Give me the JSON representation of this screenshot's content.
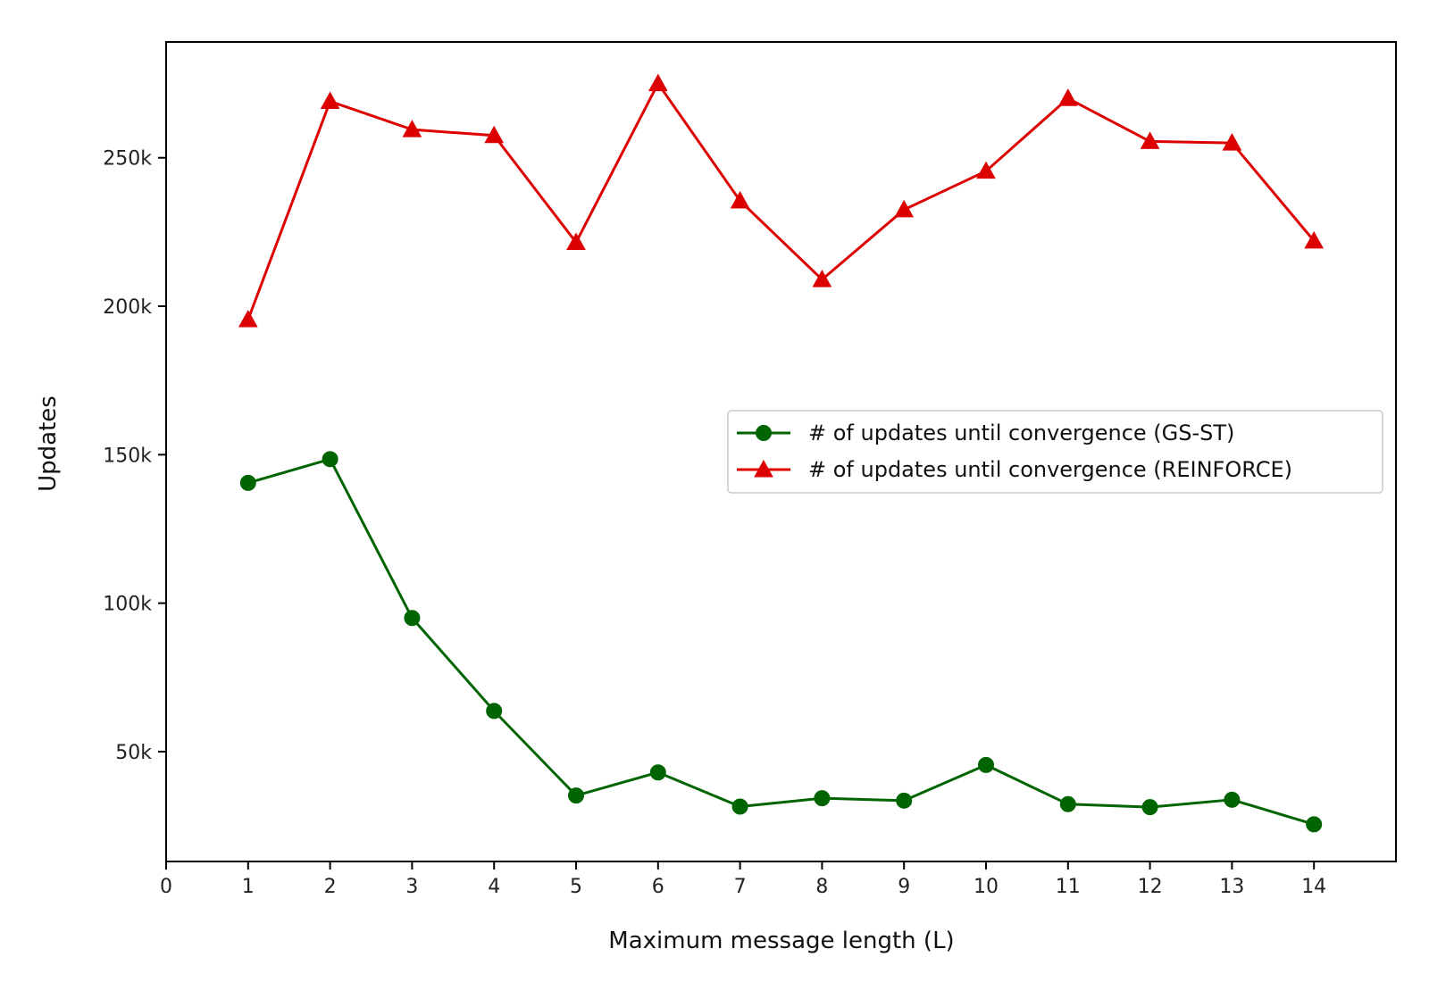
{
  "chart_data": {
    "type": "line",
    "title": "",
    "xlabel": "Maximum message length (L)",
    "ylabel": "Updates",
    "xlim": [
      0,
      15
    ],
    "ylim": [
      13000,
      289000
    ],
    "x_ticks": [
      0,
      1,
      2,
      3,
      4,
      5,
      6,
      7,
      8,
      9,
      10,
      11,
      12,
      13,
      14
    ],
    "x_tick_labels": [
      "0",
      "1",
      "2",
      "3",
      "4",
      "5",
      "6",
      "7",
      "8",
      "9",
      "10",
      "11",
      "12",
      "13",
      "14"
    ],
    "y_ticks": [
      50000,
      100000,
      150000,
      200000,
      250000
    ],
    "y_tick_labels": [
      "50k",
      "100k",
      "150k",
      "200k",
      "250k"
    ],
    "grid": false,
    "legend_position": "center-right",
    "x": [
      1,
      2,
      3,
      4,
      5,
      6,
      7,
      8,
      9,
      10,
      11,
      12,
      13,
      14
    ],
    "series": [
      {
        "name": "# of updates until convergence (GS-ST)",
        "marker": "circle",
        "color": "#006400",
        "values": [
          140500,
          148500,
          95000,
          63700,
          35200,
          43000,
          31500,
          34300,
          33500,
          45500,
          32300,
          31300,
          33800,
          25500
        ]
      },
      {
        "name": "# of updates until convergence (REINFORCE)",
        "marker": "triangle",
        "color": "#dd0000",
        "values": [
          195500,
          269000,
          259500,
          257500,
          221500,
          275000,
          235500,
          209000,
          232500,
          245500,
          270000,
          255500,
          255000,
          222000
        ]
      }
    ]
  }
}
